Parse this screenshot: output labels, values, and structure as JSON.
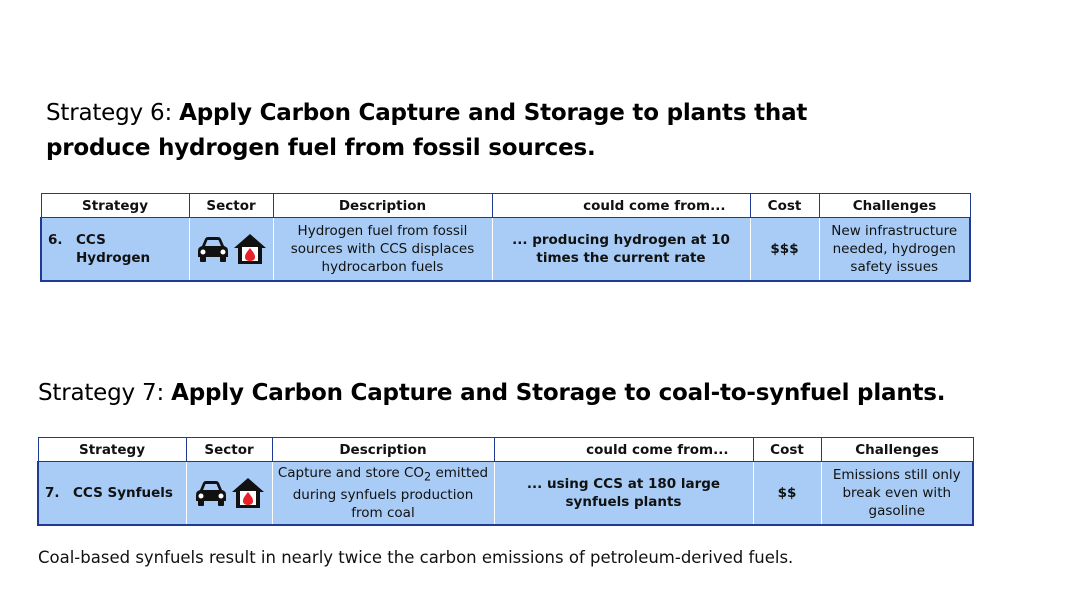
{
  "strategy6": {
    "heading_prefix": "Strategy 6: ",
    "heading_bold": "Apply Carbon Capture and Storage to plants that produce hydrogen fuel from fossil sources.",
    "table": {
      "headers": [
        "Strategy",
        "Sector",
        "Description",
        "could come from...",
        "Cost",
        "Challenges"
      ],
      "row": {
        "number": "6.",
        "strategy_line1": "CCS",
        "strategy_line2": "Hydrogen",
        "sector_icons": [
          "car-icon",
          "home-fuel-icon"
        ],
        "description": "Hydrogen fuel from fossil sources with CCS displaces hydrocarbon fuels",
        "could_come_from": "... producing hydrogen at 10 times the current rate",
        "cost": "$$$",
        "challenges": "New infrastructure needed, hydrogen safety issues"
      }
    }
  },
  "strategy7": {
    "heading_prefix": "Strategy 7: ",
    "heading_bold": "Apply Carbon Capture and Storage to coal-to-synfuel plants.",
    "table": {
      "headers": [
        "Strategy",
        "Sector",
        "Description",
        "could come from...",
        "Cost",
        "Challenges"
      ],
      "row": {
        "number": "7.",
        "strategy": "CCS Synfuels",
        "sector_icons": [
          "car-icon",
          "home-fuel-icon"
        ],
        "description_part1": "Capture and store CO",
        "description_sub": "2",
        "description_part2": " emitted during synfuels production from coal",
        "could_come_from": "... using CCS at 180 large synfuels plants",
        "cost": "$$",
        "challenges": "Emissions still only break even with gasoline"
      }
    }
  },
  "footnote": "Coal-based synfuels result in nearly twice the carbon emissions of petroleum-derived fuels.",
  "colors": {
    "row_fill": "#a8ccf5",
    "table_border": "#1f3a93",
    "icon_dark": "#111111",
    "fire_red": "#e8202a"
  }
}
